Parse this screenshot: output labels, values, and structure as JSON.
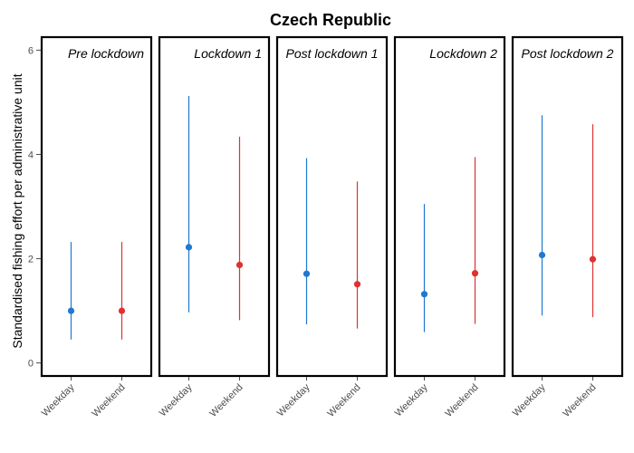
{
  "chart_data": {
    "type": "errorbar",
    "title": "Czech Republic",
    "ylabel": "Standardised fishing effort per administrative unit",
    "xlabel": "",
    "ylim": [
      -0.25,
      6.25
    ],
    "yticks": [
      0,
      2,
      4,
      6
    ],
    "categories": [
      "Weekday",
      "Weekend"
    ],
    "colors": {
      "Weekday": "#1f78d1",
      "Weekend": "#e03131"
    },
    "panels": [
      {
        "label": "Pre lockdown",
        "label_align": "right",
        "points": [
          {
            "category": "Weekday",
            "estimate": 1.0,
            "lower": 0.45,
            "upper": 2.32
          },
          {
            "category": "Weekend",
            "estimate": 1.0,
            "lower": 0.45,
            "upper": 2.32
          }
        ]
      },
      {
        "label": "Lockdown 1",
        "label_align": "right",
        "points": [
          {
            "category": "Weekday",
            "estimate": 2.22,
            "lower": 0.97,
            "upper": 5.12
          },
          {
            "category": "Weekend",
            "estimate": 1.88,
            "lower": 0.82,
            "upper": 4.34
          }
        ]
      },
      {
        "label": "Post lockdown 1",
        "label_align": "center",
        "points": [
          {
            "category": "Weekday",
            "estimate": 1.71,
            "lower": 0.74,
            "upper": 3.93
          },
          {
            "category": "Weekend",
            "estimate": 1.51,
            "lower": 0.66,
            "upper": 3.48
          }
        ]
      },
      {
        "label": "Lockdown 2",
        "label_align": "right",
        "points": [
          {
            "category": "Weekday",
            "estimate": 1.32,
            "lower": 0.59,
            "upper": 3.05
          },
          {
            "category": "Weekend",
            "estimate": 1.72,
            "lower": 0.75,
            "upper": 3.95
          }
        ]
      },
      {
        "label": "Post lockdown 2",
        "label_align": "center",
        "points": [
          {
            "category": "Weekday",
            "estimate": 2.07,
            "lower": 0.91,
            "upper": 4.75
          },
          {
            "category": "Weekend",
            "estimate": 1.99,
            "lower": 0.88,
            "upper": 4.58
          }
        ]
      }
    ]
  }
}
